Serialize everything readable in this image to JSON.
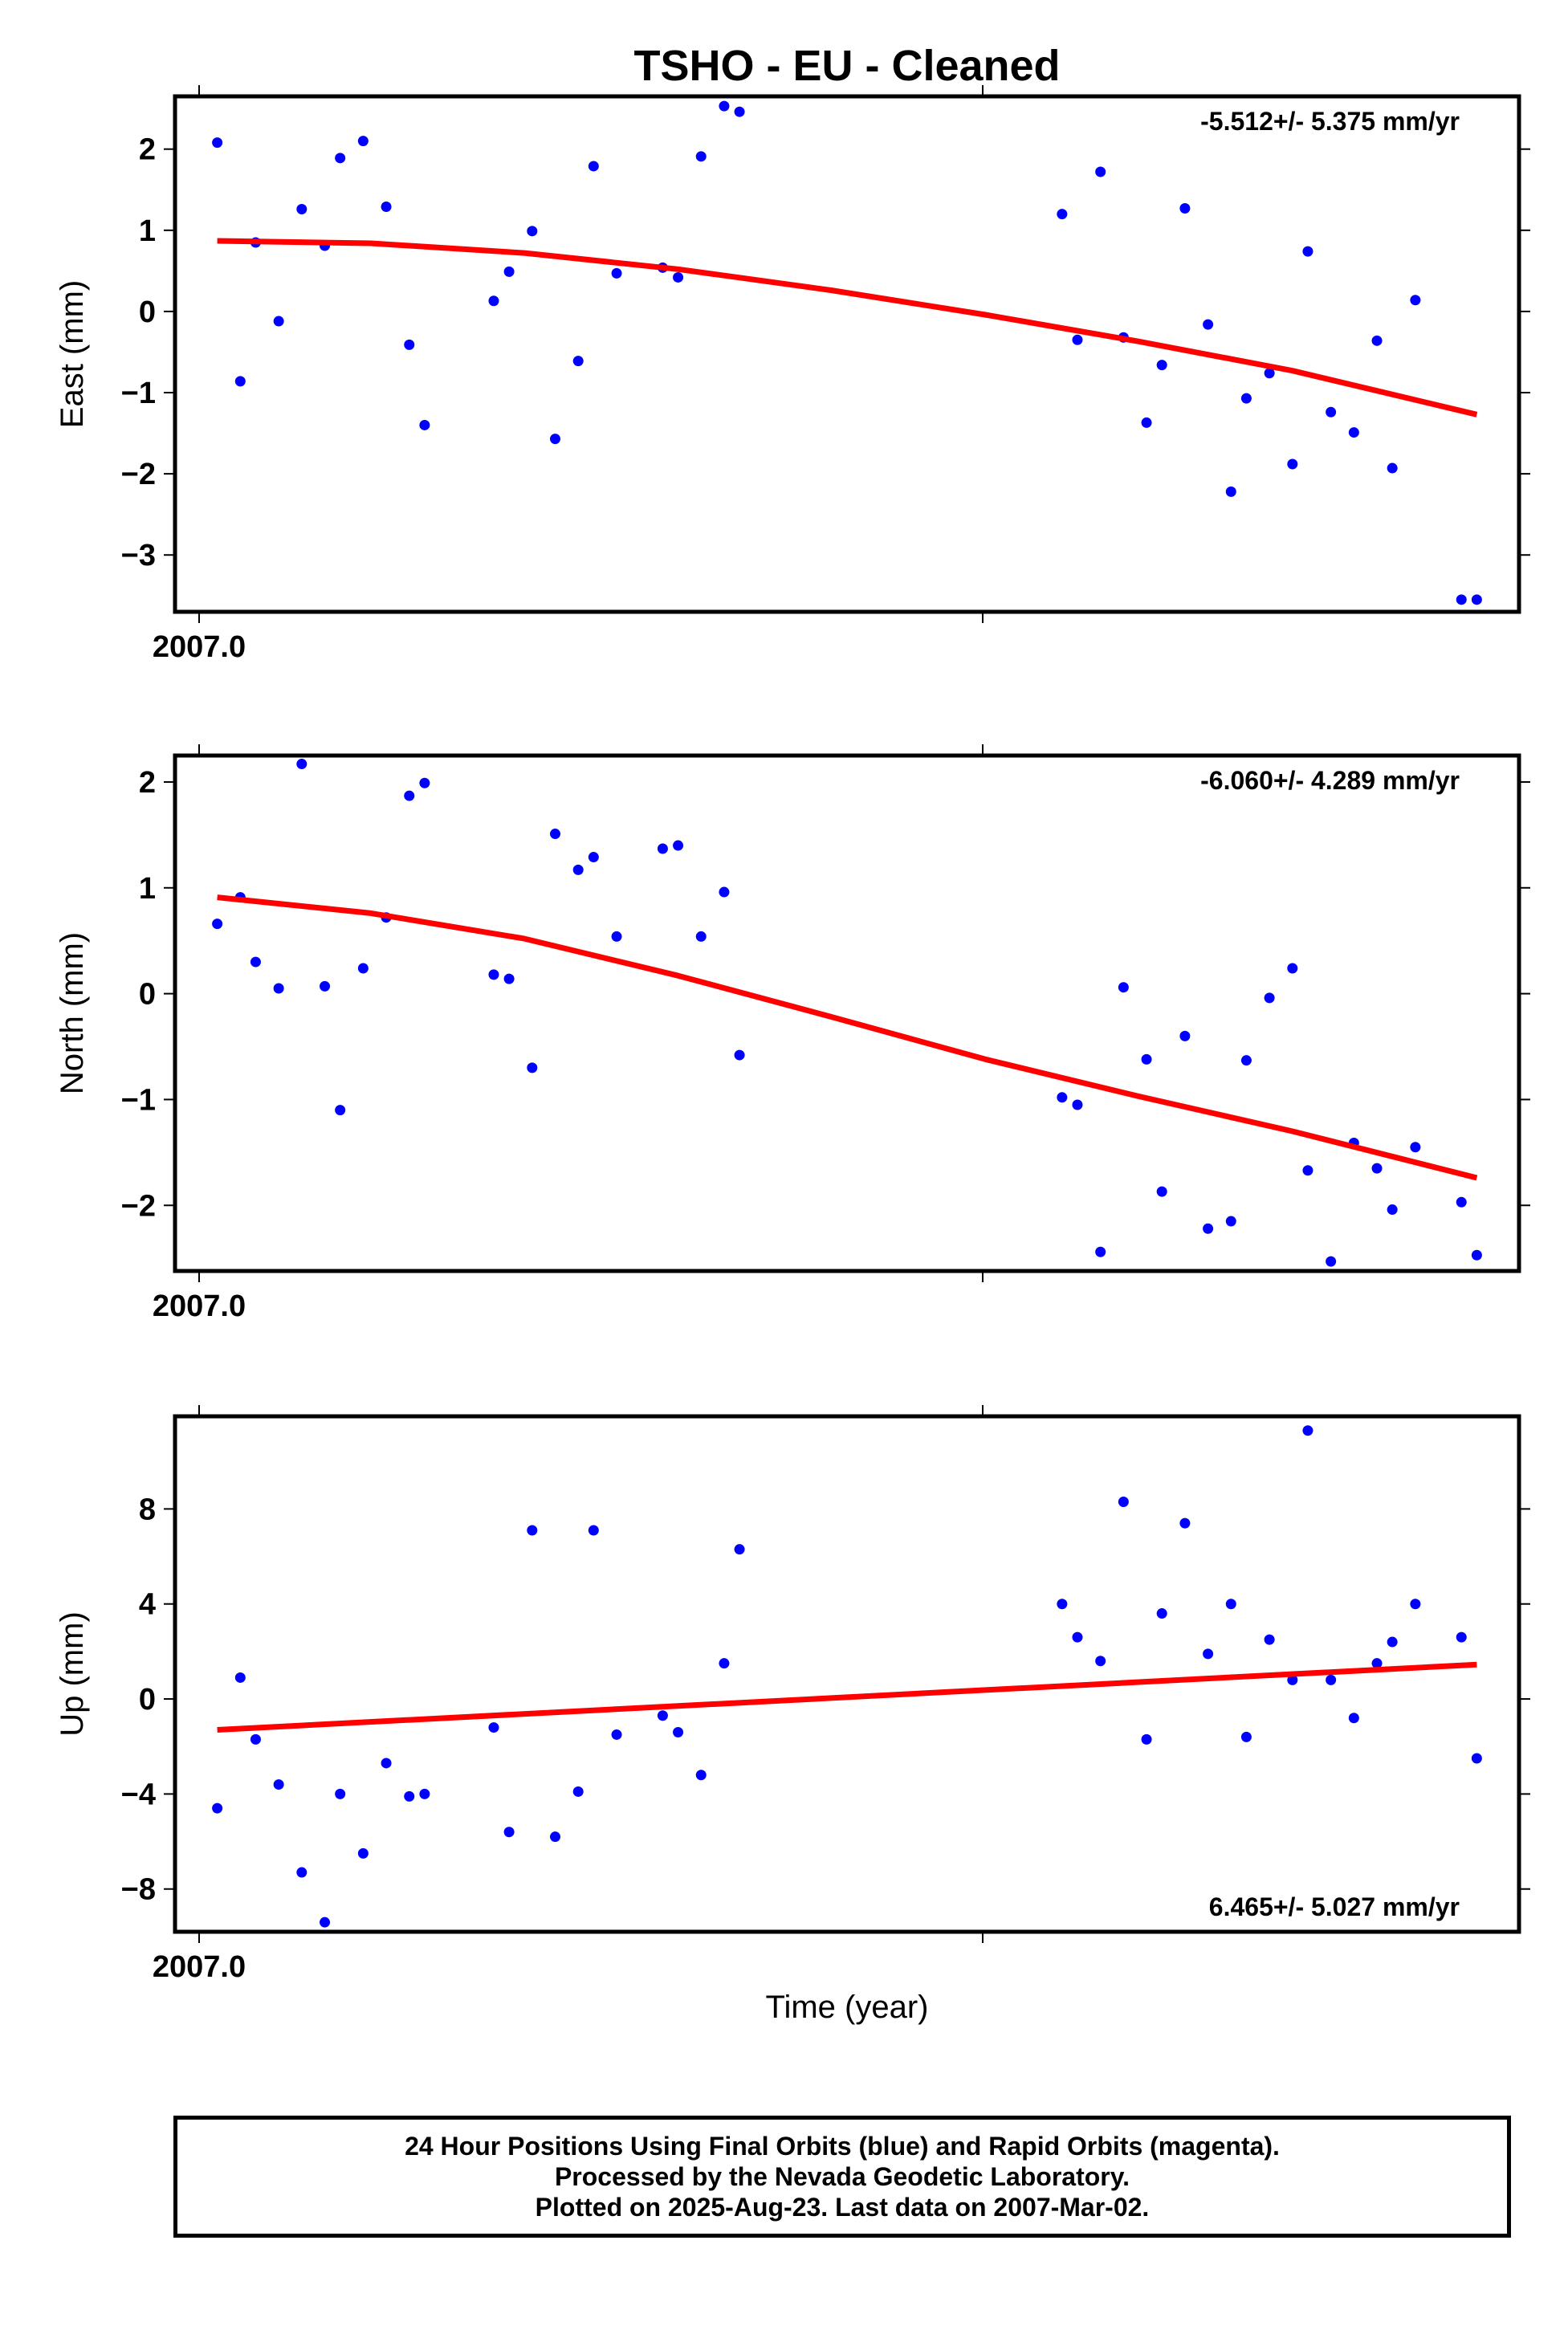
{
  "chart_data": [
    {
      "type": "scatter",
      "title": "TSHO  - EU - Cleaned",
      "ylabel": "East (mm)",
      "xlabel": "",
      "x_tick_label": "2007.0",
      "rate": "-5.512+/- 5.375 mm/yr",
      "ylim": [
        -3.7,
        2.65
      ],
      "yticks": [
        2,
        1,
        0,
        -1,
        -2,
        -3
      ],
      "ytick_labels": [
        "2",
        "1",
        "0",
        "−1",
        "−2",
        "−3"
      ],
      "point_color": "#0000ff",
      "fit_color": "#ff0000",
      "x": [
        2007.0,
        2007.003,
        2007.005,
        2007.008,
        2007.011,
        2007.014,
        2007.016,
        2007.019,
        2007.022,
        2007.025,
        2007.027,
        2007.036,
        2007.038,
        2007.041,
        2007.044,
        2007.047,
        2007.049,
        2007.052,
        2007.058,
        2007.06,
        2007.063,
        2007.066,
        2007.068,
        2007.11,
        2007.112,
        2007.115,
        2007.118,
        2007.121,
        2007.123,
        2007.126,
        2007.129,
        2007.132,
        2007.134,
        2007.137,
        2007.14,
        2007.142,
        2007.145,
        2007.148,
        2007.151,
        2007.153,
        2007.156,
        2007.162,
        2007.164
      ],
      "values": [
        2.08,
        -0.86,
        0.85,
        -0.12,
        1.26,
        0.81,
        1.89,
        2.1,
        1.29,
        -0.41,
        -1.4,
        0.13,
        0.49,
        0.99,
        -1.57,
        -0.61,
        1.79,
        0.47,
        0.54,
        0.42,
        1.91,
        2.53,
        2.46,
        1.2,
        -0.35,
        1.72,
        -0.32,
        -1.37,
        -0.66,
        1.27,
        -0.16,
        -2.22,
        -1.07,
        -0.76,
        -1.88,
        0.74,
        -1.24,
        -1.49,
        -0.36,
        -1.93,
        0.14,
        -3.55,
        -3.55
      ],
      "fit": {
        "x": [
          2007.0,
          2007.02,
          2007.04,
          2007.06,
          2007.08,
          2007.1,
          2007.12,
          2007.14,
          2007.164
        ],
        "y": [
          0.87,
          0.84,
          0.72,
          0.52,
          0.26,
          -0.04,
          -0.37,
          -0.73,
          -1.27
        ]
      }
    },
    {
      "type": "scatter",
      "title": "",
      "ylabel": "North (mm)",
      "xlabel": "",
      "x_tick_label": "2007.0",
      "rate": "-6.060+/- 4.289 mm/yr",
      "ylim": [
        -2.62,
        2.25
      ],
      "yticks": [
        2,
        1,
        0,
        -1,
        -2
      ],
      "ytick_labels": [
        "2",
        "1",
        "0",
        "−1",
        "−2"
      ],
      "point_color": "#0000ff",
      "fit_color": "#ff0000",
      "x": [
        2007.0,
        2007.003,
        2007.005,
        2007.008,
        2007.011,
        2007.014,
        2007.016,
        2007.019,
        2007.022,
        2007.025,
        2007.027,
        2007.036,
        2007.038,
        2007.041,
        2007.044,
        2007.047,
        2007.049,
        2007.052,
        2007.058,
        2007.06,
        2007.063,
        2007.066,
        2007.068,
        2007.11,
        2007.112,
        2007.115,
        2007.118,
        2007.121,
        2007.123,
        2007.126,
        2007.129,
        2007.132,
        2007.134,
        2007.137,
        2007.14,
        2007.142,
        2007.145,
        2007.148,
        2007.151,
        2007.153,
        2007.156,
        2007.162,
        2007.164
      ],
      "values": [
        0.66,
        0.91,
        0.3,
        0.05,
        2.17,
        0.07,
        -1.1,
        0.24,
        0.72,
        1.87,
        1.99,
        0.18,
        0.14,
        -0.7,
        1.51,
        1.17,
        1.29,
        0.54,
        1.37,
        1.4,
        0.54,
        0.96,
        -0.58,
        -0.98,
        -1.05,
        -2.44,
        0.06,
        -0.62,
        -1.87,
        -0.4,
        -2.22,
        -2.15,
        -0.63,
        -0.04,
        0.24,
        -1.67,
        -2.53,
        -1.41,
        -1.65,
        -2.04,
        -1.45,
        -1.97,
        -2.47
      ],
      "fit": {
        "x": [
          2007.0,
          2007.02,
          2007.04,
          2007.06,
          2007.08,
          2007.1,
          2007.12,
          2007.14,
          2007.164
        ],
        "y": [
          0.91,
          0.76,
          0.52,
          0.17,
          -0.22,
          -0.62,
          -0.97,
          -1.3,
          -1.74
        ]
      }
    },
    {
      "type": "scatter",
      "title": "",
      "ylabel": "Up (mm)",
      "xlabel": "Time (year)",
      "x_tick_label": "2007.0",
      "rate": "6.465+/- 5.027 mm/yr",
      "ylim": [
        -9.8,
        11.9
      ],
      "yticks": [
        8,
        4,
        0,
        -4,
        -8
      ],
      "ytick_labels": [
        "8",
        "4",
        "0",
        "−4",
        "−8"
      ],
      "point_color": "#0000ff",
      "fit_color": "#ff0000",
      "x": [
        2007.0,
        2007.003,
        2007.005,
        2007.008,
        2007.011,
        2007.014,
        2007.016,
        2007.019,
        2007.022,
        2007.025,
        2007.027,
        2007.036,
        2007.038,
        2007.041,
        2007.044,
        2007.047,
        2007.049,
        2007.052,
        2007.058,
        2007.06,
        2007.063,
        2007.066,
        2007.068,
        2007.11,
        2007.112,
        2007.115,
        2007.118,
        2007.121,
        2007.123,
        2007.126,
        2007.129,
        2007.132,
        2007.134,
        2007.137,
        2007.14,
        2007.142,
        2007.145,
        2007.148,
        2007.151,
        2007.153,
        2007.156,
        2007.162,
        2007.164
      ],
      "values": [
        -4.6,
        0.9,
        -1.7,
        -3.6,
        -7.3,
        -9.4,
        -4.0,
        -6.5,
        -2.7,
        -4.1,
        -4.0,
        -1.2,
        -5.6,
        7.1,
        -5.8,
        -3.9,
        7.1,
        -1.5,
        -0.7,
        -1.4,
        -3.2,
        1.5,
        6.3,
        4.0,
        2.6,
        1.6,
        8.3,
        -1.7,
        3.6,
        7.4,
        1.9,
        4.0,
        -1.6,
        2.5,
        0.8,
        11.3,
        0.8,
        -0.8,
        1.5,
        2.4,
        4.0,
        2.6,
        -2.5
      ],
      "fit": {
        "x": [
          2007.0,
          2007.164
        ],
        "y": [
          -1.3,
          1.45
        ]
      }
    }
  ],
  "footer": {
    "line1": "24 Hour Positions Using Final Orbits (blue) and Rapid Orbits (magenta).",
    "line2": "Processed by the Nevada Geodetic Laboratory.",
    "line3": "Plotted on 2025-Aug-23. Last data on 2007-Mar-02."
  }
}
